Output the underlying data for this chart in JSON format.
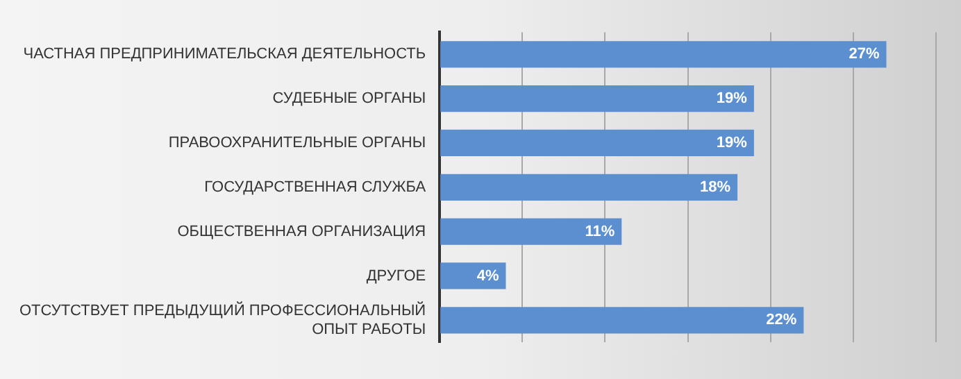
{
  "chart_data": {
    "type": "bar",
    "orientation": "horizontal",
    "categories": [
      "ЧАСТНАЯ ПРЕДПРИНИМАТЕЛЬСКАЯ ДЕЯТЕЛЬНОСТЬ",
      "СУДЕБНЫЕ ОРГАНЫ",
      "ПРАВООХРАНИТЕЛЬНЫЕ ОРГАНЫ",
      "ГОСУДАРСТВЕННАЯ СЛУЖБА",
      "ОБЩЕСТВЕННАЯ ОРГАНИЗАЦИЯ",
      "ДРУГОЕ",
      "ОТСУТСТВУЕТ ПРЕДЫДУЩИЙ ПРОФЕССИОНАЛЬНЫЙ ОПЫТ РАБОТЫ"
    ],
    "values": [
      27,
      19,
      19,
      18,
      11,
      4,
      22
    ],
    "value_labels": [
      "27%",
      "19%",
      "19%",
      "18%",
      "11%",
      "4%",
      "22%"
    ],
    "color": "#5b8fcf",
    "xlim": [
      0,
      30
    ],
    "xticks": [
      {
        "value": 0,
        "label": null
      },
      {
        "value": 5,
        "label": null
      },
      {
        "value": 10,
        "label": null
      },
      {
        "value": 15,
        "label": null
      },
      {
        "value": 20,
        "label": null
      },
      {
        "value": 25,
        "label": null
      },
      {
        "value": 30,
        "label": null
      }
    ],
    "grid": "x",
    "legend": false
  }
}
